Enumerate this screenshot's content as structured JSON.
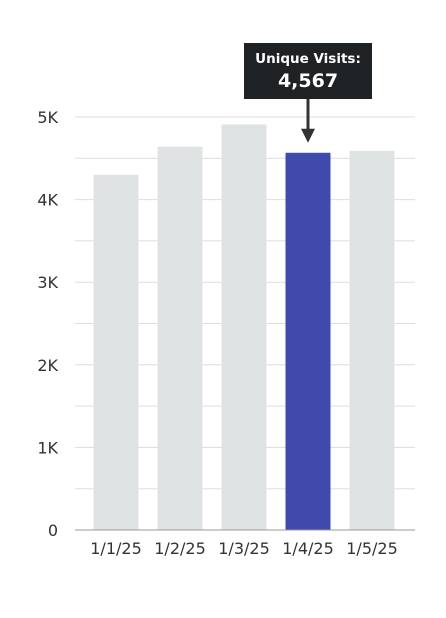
{
  "chart_data": {
    "type": "bar",
    "title": "",
    "xlabel": "",
    "ylabel": "",
    "categories": [
      "1/1/25",
      "1/2/25",
      "1/3/25",
      "1/4/25",
      "1/5/25"
    ],
    "values": [
      4300,
      4640,
      4910,
      4567,
      4590
    ],
    "ylim": [
      0,
      5000
    ],
    "y_ticks": [
      0,
      1000,
      2000,
      3000,
      4000,
      5000
    ],
    "y_tick_labels": [
      "0",
      "1K",
      "2K",
      "3K",
      "4K",
      "5K"
    ],
    "minor_gridlines": true,
    "highlight_index": 3,
    "tooltip": {
      "title": "Unique Visits:",
      "value": "4,567"
    },
    "colors": {
      "bar": "#dfe3e4",
      "highlight": "#404aad",
      "grid": "#dddddd",
      "axis": "#999999",
      "tooltip_bg": "#1e2224",
      "arrow": "#333333"
    }
  }
}
